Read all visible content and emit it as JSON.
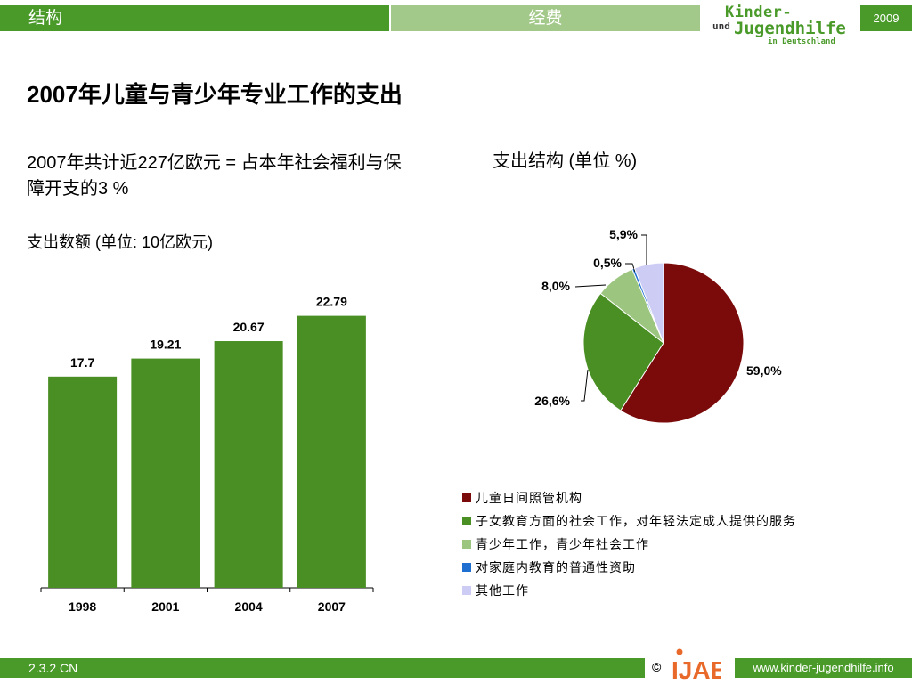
{
  "header": {
    "tab_structure": "结构",
    "tab_funding": "经费",
    "logo_line1": "Kinder-",
    "logo_und": "und",
    "logo_line2": "Jugendhilfe",
    "logo_line3": "in Deutschland",
    "year": "2009"
  },
  "page_title": "2007年儿童与青少年专业工作的支出",
  "summary_text": "2007年共计近227亿欧元 = 占本年社会福利与保障开支的3 %",
  "footer": {
    "code": "2.3.2 CN",
    "copyright": "©",
    "ijab": "IJAB",
    "url": "www.kinder-jugendhilfe.info"
  },
  "colors": {
    "accent_green": "#4a9a2a",
    "light_green": "#a3c98a"
  },
  "chart_data": [
    {
      "type": "bar",
      "title": "支出数额 (单位: 10亿欧元)",
      "categories": [
        "1998",
        "2001",
        "2004",
        "2007"
      ],
      "values": [
        17.7,
        19.21,
        20.67,
        22.79
      ],
      "value_labels": [
        "17.7",
        "19.21",
        "20.67",
        "22.79"
      ],
      "ylim": [
        0,
        25
      ],
      "color": "#4a8f23",
      "grid": false
    },
    {
      "type": "pie",
      "title": "支出结构 (单位 %)",
      "slices": [
        {
          "label": "儿童日间照管机构",
          "value": 59.0,
          "display": "59,0%",
          "color": "#7b0b0b"
        },
        {
          "label": "子女教育方面的社会工作，对年轻法定成人提供的服务",
          "value": 26.6,
          "display": "26,6%",
          "color": "#4a8f23"
        },
        {
          "label": "青少年工作，青少年社会工作",
          "value": 8.0,
          "display": "8,0%",
          "color": "#9cc67f"
        },
        {
          "label": "对家庭内教育的普通性资助",
          "value": 0.5,
          "display": "0,5%",
          "color": "#1f6fd1"
        },
        {
          "label": "其他工作",
          "value": 5.9,
          "display": "5,9%",
          "color": "#ccccf5"
        }
      ],
      "legend_position": "bottom"
    }
  ]
}
